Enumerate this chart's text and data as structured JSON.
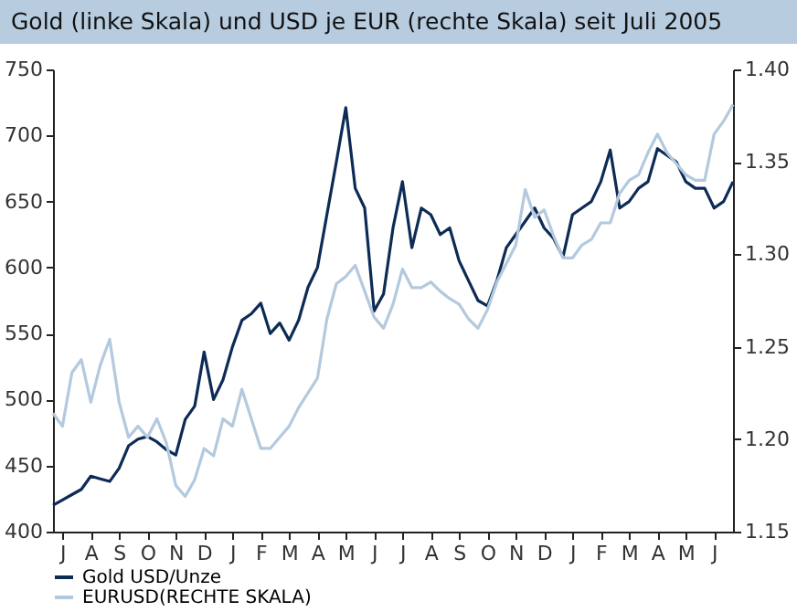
{
  "chart_data": {
    "type": "line",
    "title": "Gold (linke Skala) und USD je EUR (rechte Skala) seit Juli 2005",
    "categories": [
      null,
      "J",
      null,
      null,
      "A",
      null,
      null,
      "S",
      null,
      null,
      "O",
      null,
      null,
      "N",
      null,
      null,
      "D",
      null,
      null,
      "J",
      null,
      null,
      "F",
      null,
      null,
      "M",
      null,
      null,
      "A",
      null,
      null,
      "M",
      null,
      null,
      "J",
      null,
      null,
      "J",
      null,
      null,
      "A",
      null,
      null,
      "S",
      null,
      null,
      "O",
      null,
      null,
      "N",
      null,
      null,
      "D",
      null,
      null,
      "J",
      null,
      null,
      "F",
      null,
      null,
      "M",
      null,
      null,
      "A",
      null,
      null,
      "M",
      null,
      null,
      "J",
      null,
      null
    ],
    "ylim": [
      400,
      750
    ],
    "yticks": [
      400,
      450,
      500,
      550,
      600,
      650,
      700,
      750
    ],
    "y2lim": [
      1.15,
      1.4
    ],
    "y2ticks": [
      {
        "value": 1.15,
        "label": "1.15"
      },
      {
        "value": 1.2,
        "label": "1.20"
      },
      {
        "value": 1.25,
        "label": "1.25"
      },
      {
        "value": 1.3,
        "label": "1.30"
      },
      {
        "value": 1.35,
        "label": "1.35"
      },
      {
        "value": 1.4,
        "label": "1.40"
      }
    ],
    "grid": false,
    "legend": "bottom",
    "marker": "none",
    "line_style": "solid",
    "series": [
      {
        "name": "Gold USD/Unze",
        "color": "#0d2b55",
        "values": [
          420,
          424,
          428,
          432,
          442,
          440,
          438,
          448,
          465,
          470,
          472,
          468,
          462,
          458,
          485,
          495,
          536,
          500,
          515,
          540,
          560,
          565,
          573,
          550,
          558,
          545,
          560,
          585,
          600,
          640,
          680,
          721,
          660,
          645,
          567,
          580,
          630,
          665,
          615,
          645,
          640,
          625,
          630,
          605,
          590,
          575,
          571,
          590,
          615,
          625,
          635,
          645,
          630,
          622,
          608,
          640,
          645,
          650,
          665,
          689,
          645,
          650,
          660,
          665,
          690,
          685,
          680,
          665,
          660,
          660,
          645,
          650,
          665
        ]
      },
      {
        "name": "EURUSD(RECHTE SKALA)",
        "color": "#b3c9de",
        "axis": "y2",
        "values": [
          1.214,
          1.207,
          1.236,
          1.243,
          1.22,
          1.24,
          1.254,
          1.22,
          1.201,
          1.207,
          1.201,
          1.211,
          1.198,
          1.175,
          1.169,
          1.178,
          1.195,
          1.191,
          1.211,
          1.207,
          1.227,
          1.211,
          1.195,
          1.195,
          1.201,
          1.207,
          1.217,
          1.225,
          1.233,
          1.265,
          1.284,
          1.288,
          1.294,
          1.28,
          1.266,
          1.26,
          1.273,
          1.292,
          1.282,
          1.282,
          1.285,
          1.28,
          1.276,
          1.273,
          1.265,
          1.26,
          1.27,
          1.285,
          1.295,
          1.305,
          1.335,
          1.32,
          1.324,
          1.31,
          1.298,
          1.298,
          1.305,
          1.308,
          1.317,
          1.317,
          1.333,
          1.34,
          1.343,
          1.355,
          1.365,
          1.355,
          1.349,
          1.343,
          1.34,
          1.34,
          1.365,
          1.372,
          1.381
        ]
      }
    ]
  }
}
